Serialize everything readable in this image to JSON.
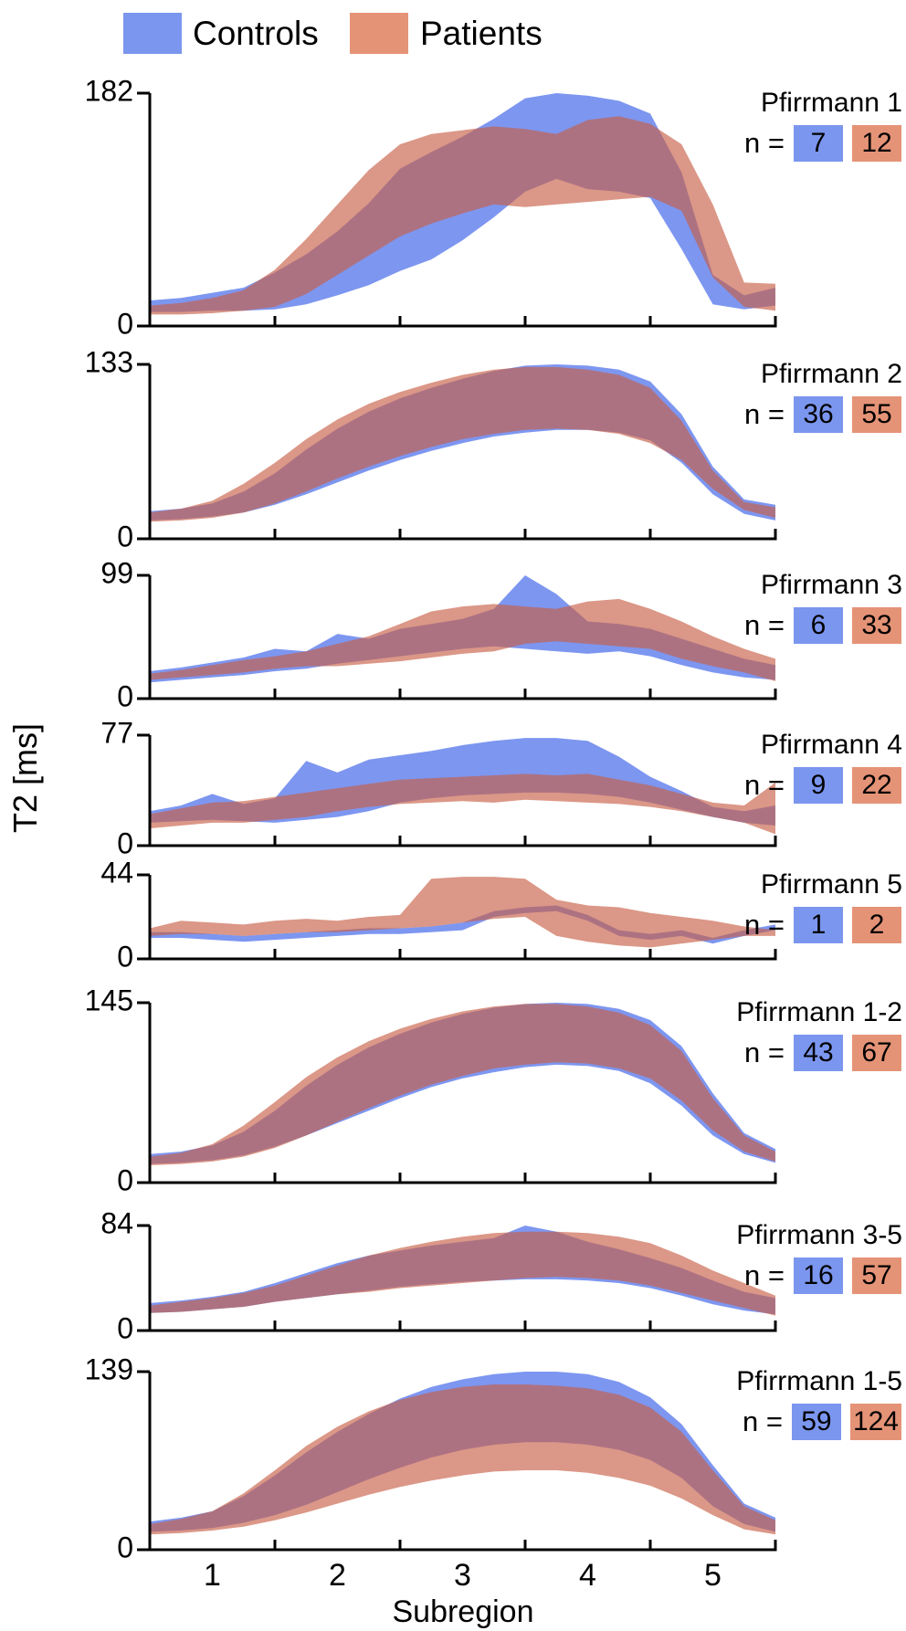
{
  "legend": {
    "controls": "Controls",
    "patients": "Patients"
  },
  "ylabel": "T2 [ms]",
  "xaxis": {
    "label": "Subregion",
    "tick_labels": [
      "1",
      "2",
      "3",
      "4",
      "5"
    ],
    "range": [
      0.5,
      5.5
    ]
  },
  "labels": {
    "zero": "0",
    "n_prefix": "n ="
  },
  "colors": {
    "controls_fill": "#7D96F0",
    "controls_solid": "#7B96EE",
    "patients_fill": "rgba(200,95,70,0.65)",
    "patients_solid": "#E59377",
    "axis": "#000000"
  },
  "chart_data": {
    "type": "area-band",
    "x": [
      0.5,
      0.75,
      1,
      1.25,
      1.5,
      1.75,
      2,
      2.25,
      2.5,
      2.75,
      3,
      3.25,
      3.5,
      3.75,
      4,
      4.25,
      4.5,
      4.75,
      5,
      5.25,
      5.5
    ],
    "series_names": [
      "Controls",
      "Patients"
    ],
    "panels": [
      {
        "title": "Pfirrmann 1",
        "ymax": 182,
        "ymax_label": "182",
        "n_controls": 7,
        "n_patients": 12,
        "controls_upper": [
          20,
          22,
          26,
          30,
          42,
          56,
          74,
          96,
          123,
          136,
          148,
          162,
          178,
          182,
          180,
          176,
          166,
          120,
          40,
          24,
          30
        ],
        "controls_lower": [
          11,
          11,
          12,
          12,
          13,
          17,
          24,
          32,
          43,
          52,
          67,
          85,
          105,
          115,
          107,
          105,
          100,
          60,
          17,
          13,
          16
        ],
        "patients_upper": [
          16,
          18,
          22,
          28,
          44,
          68,
          95,
          122,
          142,
          150,
          153,
          156,
          154,
          150,
          161,
          164,
          158,
          142,
          95,
          34,
          33
        ],
        "patients_lower": [
          9,
          9,
          10,
          12,
          15,
          25,
          40,
          55,
          70,
          80,
          88,
          95,
          93,
          95,
          97,
          99,
          101,
          90,
          38,
          15,
          12
        ]
      },
      {
        "title": "Pfirrmann 2",
        "ymax": 133,
        "ymax_label": "133",
        "n_controls": 36,
        "n_patients": 55,
        "controls_upper": [
          21,
          23,
          27,
          36,
          50,
          68,
          84,
          97,
          107,
          115,
          122,
          128,
          132,
          133,
          132,
          129,
          120,
          95,
          55,
          30,
          26
        ],
        "controls_lower": [
          14,
          15,
          17,
          20,
          26,
          34,
          43,
          52,
          60,
          67,
          73,
          78,
          81,
          83,
          83,
          81,
          75,
          58,
          34,
          19,
          14
        ],
        "patients_upper": [
          20,
          23,
          29,
          42,
          58,
          76,
          91,
          103,
          112,
          119,
          125,
          129,
          131,
          131,
          129,
          125,
          115,
          90,
          52,
          28,
          24
        ],
        "patients_lower": [
          13,
          14,
          16,
          20,
          27,
          36,
          46,
          55,
          63,
          70,
          76,
          80,
          83,
          84,
          83,
          80,
          73,
          60,
          38,
          22,
          16
        ]
      },
      {
        "title": "Pfirrmann 3",
        "ymax": 99,
        "ymax_label": "99",
        "n_controls": 6,
        "n_patients": 33,
        "controls_upper": [
          22,
          25,
          29,
          33,
          40,
          38,
          52,
          48,
          56,
          60,
          64,
          72,
          99,
          84,
          62,
          60,
          56,
          48,
          40,
          32,
          27
        ],
        "controls_lower": [
          13,
          15,
          17,
          19,
          22,
          24,
          28,
          31,
          34,
          37,
          40,
          42,
          40,
          38,
          36,
          38,
          34,
          27,
          21,
          17,
          15
        ],
        "patients_upper": [
          20,
          23,
          27,
          31,
          34,
          38,
          44,
          50,
          60,
          70,
          74,
          76,
          74,
          72,
          78,
          80,
          72,
          62,
          50,
          40,
          32
        ],
        "patients_lower": [
          15,
          17,
          19,
          21,
          24,
          26,
          26,
          28,
          30,
          33,
          36,
          38,
          44,
          46,
          44,
          42,
          40,
          32,
          26,
          21,
          14
        ]
      },
      {
        "title": "Pfirrmann 4",
        "ymax": 77,
        "ymax_label": "77",
        "n_controls": 9,
        "n_patients": 22,
        "controls_upper": [
          24,
          28,
          36,
          29,
          33,
          59,
          51,
          60,
          63,
          66,
          70,
          73,
          75,
          75,
          73,
          62,
          48,
          38,
          27,
          24,
          28
        ],
        "controls_lower": [
          16,
          17,
          18,
          17,
          16,
          18,
          20,
          24,
          30,
          33,
          35,
          36,
          37,
          37,
          36,
          34,
          30,
          25,
          20,
          16,
          14
        ],
        "patients_upper": [
          22,
          26,
          30,
          31,
          34,
          37,
          40,
          43,
          46,
          47,
          48,
          49,
          50,
          49,
          50,
          46,
          42,
          36,
          30,
          28,
          44
        ],
        "patients_lower": [
          12,
          14,
          16,
          16,
          18,
          20,
          24,
          27,
          29,
          30,
          31,
          30,
          32,
          31,
          30,
          29,
          27,
          24,
          20,
          16,
          8
        ]
      },
      {
        "title": "Pfirrmann 5",
        "ymax": 44,
        "ymax_label": "44",
        "n_controls": 1,
        "n_patients": 2,
        "controls_upper": [
          14,
          14,
          13,
          12,
          13,
          14,
          15,
          16,
          16,
          17,
          19,
          25,
          27,
          28,
          23,
          15,
          13,
          15,
          11,
          15,
          18
        ],
        "controls_lower": [
          11,
          11,
          10,
          9,
          10,
          11,
          12,
          13,
          13,
          14,
          15,
          22,
          24,
          25,
          20,
          12,
          10,
          12,
          8,
          12,
          15
        ],
        "patients_upper": [
          16,
          20,
          19,
          18,
          20,
          21,
          20,
          22,
          23,
          42,
          43,
          43,
          42,
          31,
          28,
          27,
          24,
          22,
          20,
          17,
          15
        ],
        "patients_lower": [
          12,
          13,
          13,
          12,
          13,
          14,
          14,
          15,
          16,
          17,
          19,
          21,
          22,
          12,
          9,
          7,
          6,
          8,
          10,
          12,
          12
        ]
      },
      {
        "title": "Pfirrmann 1-2",
        "ymax": 145,
        "ymax_label": "145",
        "n_controls": 43,
        "n_patients": 67,
        "controls_upper": [
          23,
          25,
          30,
          41,
          58,
          78,
          95,
          109,
          120,
          129,
          136,
          141,
          144,
          145,
          144,
          140,
          131,
          110,
          72,
          40,
          27
        ],
        "controls_lower": [
          15,
          16,
          18,
          22,
          29,
          38,
          48,
          58,
          68,
          77,
          84,
          89,
          93,
          95,
          94,
          90,
          80,
          62,
          38,
          23,
          16
        ],
        "patients_upper": [
          21,
          24,
          31,
          46,
          65,
          85,
          101,
          114,
          124,
          132,
          138,
          142,
          144,
          144,
          142,
          137,
          127,
          106,
          68,
          38,
          25
        ],
        "patients_lower": [
          14,
          15,
          17,
          21,
          28,
          38,
          49,
          60,
          70,
          79,
          86,
          92,
          95,
          97,
          96,
          92,
          84,
          66,
          42,
          25,
          17
        ]
      },
      {
        "title": "Pfirrmann 3-5",
        "ymax": 84,
        "ymax_label": "84",
        "n_controls": 16,
        "n_patients": 57,
        "controls_upper": [
          22,
          24,
          27,
          31,
          38,
          46,
          54,
          60,
          64,
          68,
          71,
          74,
          84,
          79,
          71,
          65,
          58,
          50,
          40,
          31,
          26
        ],
        "controls_lower": [
          14,
          15,
          17,
          19,
          23,
          26,
          29,
          32,
          35,
          37,
          39,
          40,
          41,
          41,
          40,
          38,
          34,
          28,
          21,
          16,
          13
        ],
        "patients_upper": [
          20,
          23,
          26,
          30,
          36,
          44,
          52,
          60,
          66,
          71,
          75,
          78,
          79,
          79,
          78,
          75,
          70,
          60,
          48,
          38,
          28
        ],
        "patients_lower": [
          14,
          15,
          17,
          19,
          23,
          26,
          29,
          31,
          34,
          36,
          38,
          40,
          42,
          43,
          42,
          40,
          36,
          30,
          24,
          18,
          12
        ]
      },
      {
        "title": "Pfirrmann 1-5",
        "ymax": 139,
        "ymax_label": "139",
        "n_controls": 59,
        "n_patients": 124,
        "controls_upper": [
          22,
          25,
          30,
          42,
          58,
          76,
          92,
          106,
          118,
          127,
          133,
          137,
          139,
          139,
          137,
          131,
          119,
          98,
          66,
          36,
          25
        ],
        "controls_lower": [
          14,
          15,
          17,
          21,
          27,
          35,
          45,
          55,
          64,
          72,
          78,
          82,
          84,
          84,
          82,
          78,
          70,
          56,
          34,
          20,
          14
        ],
        "patients_upper": [
          20,
          24,
          30,
          44,
          62,
          81,
          96,
          108,
          117,
          123,
          127,
          129,
          129,
          128,
          126,
          121,
          111,
          92,
          62,
          34,
          23
        ],
        "patients_lower": [
          12,
          13,
          15,
          18,
          23,
          29,
          36,
          43,
          49,
          54,
          58,
          61,
          62,
          62,
          60,
          56,
          50,
          40,
          27,
          16,
          12
        ]
      }
    ]
  }
}
